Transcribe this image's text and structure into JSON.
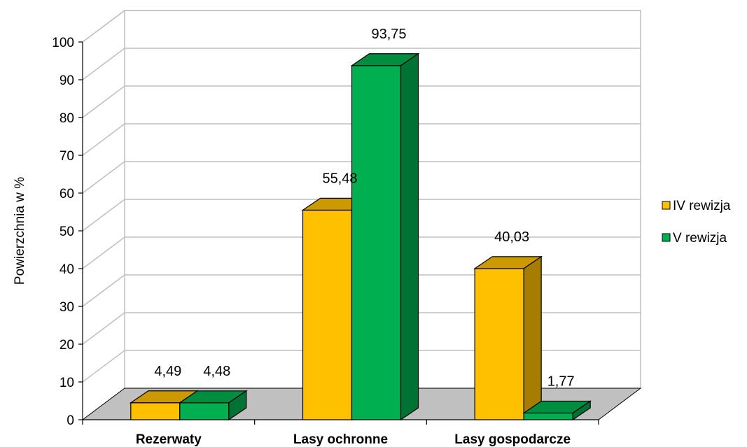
{
  "chart_data": {
    "type": "bar",
    "title": "",
    "xlabel": "",
    "ylabel": "Powierzchnia  w  %",
    "ylim": [
      0,
      100
    ],
    "yticks": [
      0,
      10,
      20,
      30,
      40,
      50,
      60,
      70,
      80,
      90,
      100
    ],
    "categories": [
      "Rezerwaty",
      "Lasy ochronne",
      "Lasy gospodarcze"
    ],
    "series": [
      {
        "name": "IV rewizja",
        "values": [
          4.49,
          55.48,
          40.03
        ],
        "labels": [
          "4,49",
          "55,48",
          "40,03"
        ],
        "color": "#FFC000"
      },
      {
        "name": "V rewizja",
        "values": [
          4.48,
          93.75,
          1.77
        ],
        "labels": [
          "4,48",
          "93,75",
          "1,77"
        ],
        "color": "#00B050"
      }
    ],
    "grid": true,
    "legend_position": "right",
    "floor_color": "#C0C0C0"
  }
}
